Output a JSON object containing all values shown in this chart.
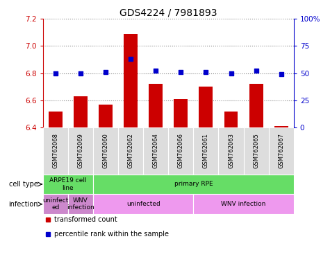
{
  "title": "GDS4224 / 7981893",
  "samples": [
    "GSM762068",
    "GSM762069",
    "GSM762060",
    "GSM762062",
    "GSM762064",
    "GSM762066",
    "GSM762061",
    "GSM762063",
    "GSM762065",
    "GSM762067"
  ],
  "transformed_count": [
    6.52,
    6.63,
    6.57,
    7.09,
    6.72,
    6.61,
    6.7,
    6.52,
    6.72,
    6.41
  ],
  "percentile_rank": [
    50,
    50,
    51,
    63,
    52,
    51,
    51,
    50,
    52,
    49
  ],
  "ylim_left": [
    6.4,
    7.2
  ],
  "ylim_right": [
    0,
    100
  ],
  "yticks_left": [
    6.4,
    6.6,
    6.8,
    7.0,
    7.2
  ],
  "yticks_right": [
    0,
    25,
    50,
    75,
    100
  ],
  "ytick_labels_right": [
    "0",
    "25",
    "50",
    "75",
    "100%"
  ],
  "bar_color": "#cc0000",
  "dot_color": "#0000cc",
  "bar_bottom": 6.4,
  "cell_type_groups": [
    {
      "label": "ARPE19 cell\nline",
      "color": "#66dd66",
      "span": [
        0,
        2
      ]
    },
    {
      "label": "primary RPE",
      "color": "#66dd66",
      "span": [
        2,
        10
      ]
    }
  ],
  "infection_groups": [
    {
      "label": "uninfect\ned",
      "color": "#dd88dd",
      "span": [
        0,
        1
      ]
    },
    {
      "label": "WNV\ninfection",
      "color": "#dd88dd",
      "span": [
        1,
        2
      ]
    },
    {
      "label": "uninfected",
      "color": "#ee99ee",
      "span": [
        2,
        6
      ]
    },
    {
      "label": "WNV infection",
      "color": "#ee99ee",
      "span": [
        6,
        10
      ]
    }
  ],
  "legend_items": [
    {
      "color": "#cc0000",
      "label": "transformed count"
    },
    {
      "color": "#0000cc",
      "label": "percentile rank within the sample"
    }
  ],
  "grid_color": "#888888",
  "label_left": "cell type",
  "label_left2": "infection",
  "sample_bg_color": "#dddddd",
  "axis_left_color": "#cc0000",
  "axis_right_color": "#0000cc"
}
